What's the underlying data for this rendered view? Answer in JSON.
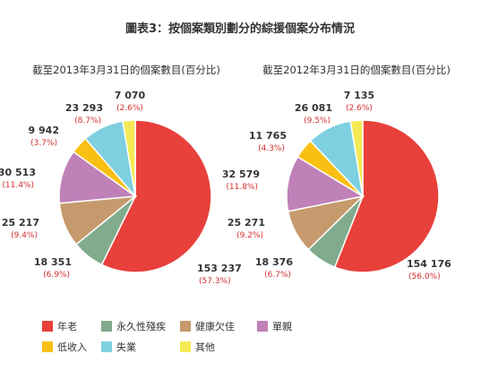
{
  "chart_data": {
    "type": "pie",
    "title": "圖表3：按個案類別劃分的綜援個案分布情況",
    "legend_placement": "bottom-left",
    "colors": [
      "#e8403a",
      "#80ab8c",
      "#c69a6d",
      "#c080b8",
      "#f9c013",
      "#7ecfe0",
      "#f4ea55"
    ],
    "categories": [
      "年老",
      "永久性殘疾",
      "健康欠佳",
      "單親",
      "低收入",
      "失業",
      "其他"
    ],
    "pies": [
      {
        "title": "截至2013年3月31日的個案數目(百分比)",
        "values": [
          153237,
          18351,
          25217,
          30513,
          9942,
          23293,
          7070
        ],
        "value_labels": [
          "153 237",
          "18 351",
          "25 217",
          "30 513",
          "9 942",
          "23 293",
          "7 070"
        ],
        "percent_labels": [
          "(57.3%)",
          "(6.9%)",
          "(9.4%)",
          "(11.4%)",
          "(3.7%)",
          "(8.7%)",
          "(2.6%)"
        ]
      },
      {
        "title": "截至2012年3月31日的個案數目(百分比)",
        "values": [
          154176,
          18376,
          25271,
          32579,
          11765,
          26081,
          7135
        ],
        "value_labels": [
          "154 176",
          "18 376",
          "25 271",
          "32 579",
          "11 765",
          "26 081",
          "7 135"
        ],
        "percent_labels": [
          "(56.0%)",
          "(6.7%)",
          "(9.2%)",
          "(11.8%)",
          "(4.3%)",
          "(9.5%)",
          "(2.6%)"
        ]
      }
    ]
  }
}
